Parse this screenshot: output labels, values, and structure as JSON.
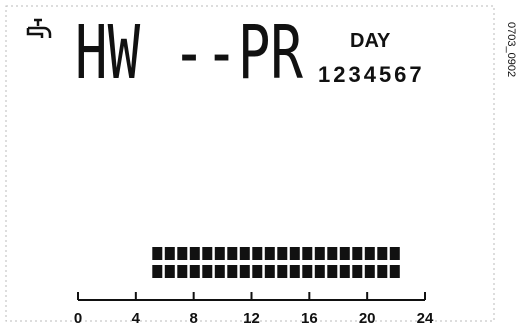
{
  "display": {
    "mode": "HW --PR",
    "day_label": "DAY",
    "days": "1234567",
    "code": "0703_0902"
  },
  "timeline": {
    "xlim": [
      0,
      24
    ],
    "ticks": [
      0,
      4,
      8,
      12,
      16,
      20,
      24
    ],
    "on": [
      5,
      23
    ]
  }
}
